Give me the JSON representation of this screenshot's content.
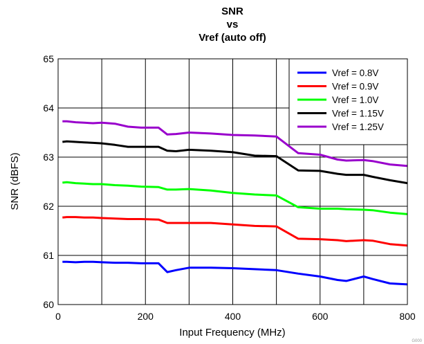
{
  "chart_data": {
    "type": "line",
    "title_lines": [
      "SNR",
      "vs",
      "Vref (auto off)"
    ],
    "xlabel": "Input Frequency (MHz)",
    "ylabel": "SNR (dBFS)",
    "xlim": [
      0,
      800
    ],
    "ylim": [
      60,
      65
    ],
    "x_ticks": [
      0,
      200,
      400,
      600,
      800
    ],
    "y_ticks": [
      60,
      61,
      62,
      63,
      64,
      65
    ],
    "grid": true,
    "legend_position": "top-right",
    "series": [
      {
        "name": "Vref = 0.8V",
        "color": "#0000ff",
        "x": [
          10,
          20,
          40,
          60,
          80,
          100,
          130,
          160,
          190,
          230,
          250,
          270,
          300,
          350,
          400,
          450,
          500,
          550,
          600,
          640,
          660,
          700,
          720,
          760,
          800
        ],
        "y": [
          60.87,
          60.87,
          60.86,
          60.87,
          60.87,
          60.86,
          60.85,
          60.85,
          60.84,
          60.84,
          60.66,
          60.7,
          60.75,
          60.75,
          60.74,
          60.72,
          60.7,
          60.63,
          60.57,
          60.5,
          60.48,
          60.57,
          60.52,
          60.43,
          60.41
        ]
      },
      {
        "name": "Vref = 0.9V",
        "color": "#ff0000",
        "x": [
          10,
          20,
          40,
          60,
          80,
          100,
          130,
          160,
          190,
          230,
          250,
          270,
          300,
          350,
          400,
          450,
          500,
          550,
          600,
          640,
          660,
          700,
          720,
          760,
          800
        ],
        "y": [
          61.77,
          61.78,
          61.78,
          61.77,
          61.77,
          61.76,
          61.75,
          61.74,
          61.74,
          61.73,
          61.66,
          61.66,
          61.66,
          61.66,
          61.63,
          61.6,
          61.59,
          61.34,
          61.33,
          61.31,
          61.29,
          61.31,
          61.3,
          61.23,
          61.2
        ]
      },
      {
        "name": "Vref = 1.0V",
        "color": "#00ff00",
        "x": [
          10,
          20,
          40,
          60,
          80,
          100,
          130,
          160,
          190,
          230,
          250,
          270,
          300,
          350,
          400,
          450,
          500,
          550,
          600,
          640,
          660,
          700,
          720,
          760,
          800
        ],
        "y": [
          62.48,
          62.49,
          62.47,
          62.46,
          62.45,
          62.45,
          62.43,
          62.42,
          62.4,
          62.39,
          62.34,
          62.34,
          62.35,
          62.32,
          62.27,
          62.24,
          62.22,
          61.98,
          61.95,
          61.95,
          61.94,
          61.93,
          61.92,
          61.87,
          61.84
        ]
      },
      {
        "name": "Vref = 1.15V",
        "color": "#000000",
        "x": [
          10,
          20,
          40,
          60,
          80,
          100,
          130,
          160,
          190,
          230,
          250,
          270,
          300,
          350,
          400,
          450,
          500,
          550,
          600,
          640,
          660,
          700,
          720,
          760,
          800
        ],
        "y": [
          63.31,
          63.32,
          63.31,
          63.3,
          63.29,
          63.28,
          63.25,
          63.21,
          63.21,
          63.21,
          63.13,
          63.12,
          63.15,
          63.13,
          63.1,
          63.03,
          63.02,
          62.73,
          62.72,
          62.66,
          62.64,
          62.64,
          62.6,
          62.53,
          62.47
        ]
      },
      {
        "name": "Vref = 1.25V",
        "color": "#9900cc",
        "x": [
          10,
          20,
          40,
          60,
          80,
          100,
          130,
          160,
          190,
          230,
          250,
          270,
          300,
          350,
          400,
          450,
          500,
          550,
          600,
          640,
          660,
          700,
          720,
          760,
          800
        ],
        "y": [
          63.73,
          63.73,
          63.71,
          63.7,
          63.69,
          63.7,
          63.68,
          63.62,
          63.6,
          63.6,
          63.46,
          63.47,
          63.5,
          63.48,
          63.45,
          63.44,
          63.42,
          63.08,
          63.05,
          62.95,
          62.93,
          62.94,
          62.92,
          62.85,
          62.82
        ]
      }
    ]
  },
  "watermark": "G000"
}
